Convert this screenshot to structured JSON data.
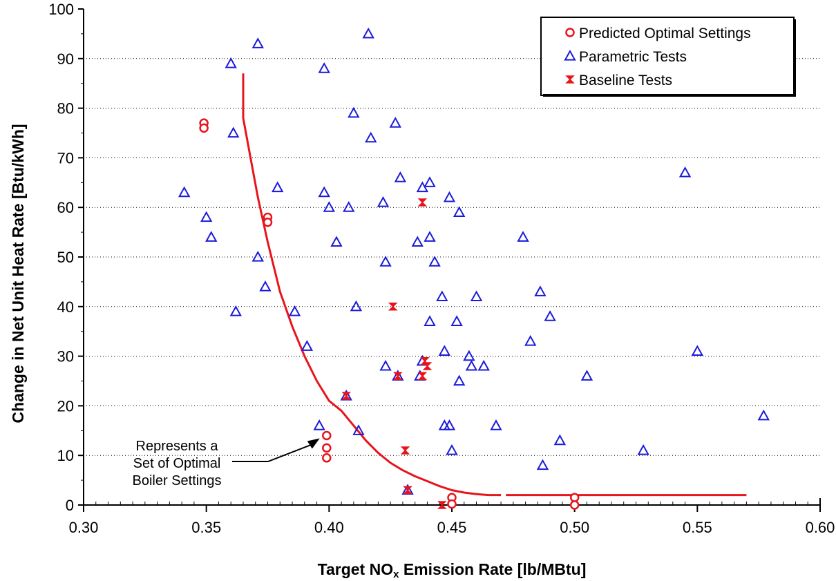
{
  "chart_data": {
    "type": "scatter",
    "xlabel": "Target NOx Emission Rate [lb/MBtu]",
    "xlabel_parts": {
      "pre": "Target NO",
      "sub": "x",
      "post": " Emission Rate [lb/MBtu]"
    },
    "ylabel": "Change in Net Unit Heat Rate [Btu/kWh]",
    "xlim": [
      0.3,
      0.6
    ],
    "ylim": [
      0,
      100
    ],
    "xticks": [
      0.3,
      0.35,
      0.4,
      0.45,
      0.5,
      0.55,
      0.6
    ],
    "xtick_labels": [
      "0.30",
      "0.35",
      "0.40",
      "0.45",
      "0.50",
      "0.55",
      "0.60"
    ],
    "yticks": [
      0,
      10,
      20,
      30,
      40,
      50,
      60,
      70,
      80,
      90,
      100
    ],
    "ytick_labels": [
      "0",
      "10",
      "20",
      "30",
      "40",
      "50",
      "60",
      "70",
      "80",
      "90",
      "100"
    ],
    "grid": "horizontal dotted",
    "legend_position": "top-right",
    "series": [
      {
        "name": "Predicted Optimal Settings",
        "marker": "circle",
        "color": "#e8141b",
        "points": [
          [
            0.349,
            77
          ],
          [
            0.349,
            76
          ],
          [
            0.375,
            58
          ],
          [
            0.375,
            57
          ],
          [
            0.399,
            14
          ],
          [
            0.399,
            11.5
          ],
          [
            0.399,
            9.5
          ],
          [
            0.45,
            1.5
          ],
          [
            0.45,
            0.2
          ],
          [
            0.5,
            1.5
          ],
          [
            0.5,
            0
          ]
        ]
      },
      {
        "name": "Parametric Tests",
        "marker": "triangle",
        "color": "#1a1adb",
        "points": [
          [
            0.341,
            63
          ],
          [
            0.35,
            58
          ],
          [
            0.352,
            54
          ],
          [
            0.36,
            89
          ],
          [
            0.361,
            75
          ],
          [
            0.362,
            39
          ],
          [
            0.371,
            93
          ],
          [
            0.371,
            50
          ],
          [
            0.374,
            44
          ],
          [
            0.379,
            64
          ],
          [
            0.386,
            39
          ],
          [
            0.391,
            32
          ],
          [
            0.396,
            16
          ],
          [
            0.398,
            88
          ],
          [
            0.398,
            63
          ],
          [
            0.4,
            60
          ],
          [
            0.403,
            53
          ],
          [
            0.407,
            22
          ],
          [
            0.408,
            60
          ],
          [
            0.41,
            79
          ],
          [
            0.411,
            40
          ],
          [
            0.412,
            15
          ],
          [
            0.416,
            95
          ],
          [
            0.417,
            74
          ],
          [
            0.422,
            61
          ],
          [
            0.423,
            49
          ],
          [
            0.423,
            28
          ],
          [
            0.427,
            77
          ],
          [
            0.428,
            26
          ],
          [
            0.429,
            66
          ],
          [
            0.436,
            53
          ],
          [
            0.437,
            26
          ],
          [
            0.438,
            64
          ],
          [
            0.438,
            29
          ],
          [
            0.441,
            65
          ],
          [
            0.441,
            54
          ],
          [
            0.441,
            37
          ],
          [
            0.443,
            49
          ],
          [
            0.446,
            42
          ],
          [
            0.447,
            31
          ],
          [
            0.447,
            16
          ],
          [
            0.449,
            16
          ],
          [
            0.449,
            62
          ],
          [
            0.45,
            11
          ],
          [
            0.452,
            37
          ],
          [
            0.453,
            59
          ],
          [
            0.453,
            25
          ],
          [
            0.457,
            30
          ],
          [
            0.458,
            28
          ],
          [
            0.46,
            42
          ],
          [
            0.463,
            28
          ],
          [
            0.468,
            16
          ],
          [
            0.479,
            54
          ],
          [
            0.482,
            33
          ],
          [
            0.486,
            43
          ],
          [
            0.487,
            8
          ],
          [
            0.49,
            38
          ],
          [
            0.494,
            13
          ],
          [
            0.505,
            26
          ],
          [
            0.528,
            11
          ],
          [
            0.545,
            67
          ],
          [
            0.55,
            31
          ],
          [
            0.577,
            18
          ],
          [
            0.432,
            3
          ]
        ]
      },
      {
        "name": "Baseline Tests",
        "marker": "hourglass",
        "color": "#e8141b",
        "points": [
          [
            0.438,
            61
          ],
          [
            0.426,
            40
          ],
          [
            0.428,
            26
          ],
          [
            0.438,
            26
          ],
          [
            0.439,
            29
          ],
          [
            0.44,
            28
          ],
          [
            0.407,
            22
          ],
          [
            0.431,
            11
          ],
          [
            0.432,
            3
          ],
          [
            0.446,
            0
          ]
        ]
      },
      {
        "name": "",
        "marker": "line",
        "color": "#e8141b",
        "points": [
          [
            0.365,
            87
          ],
          [
            0.365,
            78
          ],
          [
            0.368,
            70
          ],
          [
            0.371,
            62
          ],
          [
            0.375,
            53
          ],
          [
            0.38,
            43
          ],
          [
            0.385,
            36
          ],
          [
            0.39,
            30
          ],
          [
            0.395,
            25
          ],
          [
            0.4,
            21
          ],
          [
            0.405,
            19
          ],
          [
            0.41,
            16
          ],
          [
            0.415,
            13
          ],
          [
            0.42,
            10.5
          ],
          [
            0.425,
            8.5
          ],
          [
            0.43,
            7
          ],
          [
            0.435,
            5.8
          ],
          [
            0.44,
            4.8
          ],
          [
            0.445,
            3.8
          ],
          [
            0.45,
            3
          ],
          [
            0.455,
            2.5
          ],
          [
            0.46,
            2.2
          ],
          [
            0.465,
            2
          ],
          [
            0.47,
            2
          ]
        ]
      },
      {
        "name": "",
        "marker": "line",
        "color": "#e8141b",
        "points": [
          [
            0.472,
            2
          ],
          [
            0.57,
            2
          ]
        ]
      }
    ],
    "annotation": {
      "lines": [
        "Represents a",
        "Set of Optimal",
        "Boiler Settings"
      ],
      "arrow_target": [
        0.399,
        14
      ]
    }
  }
}
